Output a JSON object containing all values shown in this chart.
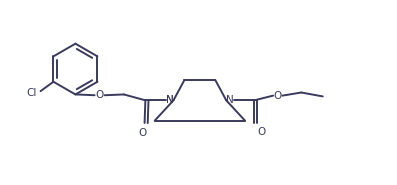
{
  "bg_color": "#ffffff",
  "line_color": "#3a3a5c",
  "line_width": 1.4,
  "figsize": [
    3.97,
    1.85
  ],
  "dpi": 100,
  "xlim": [
    0,
    10
  ],
  "ylim": [
    0,
    4.7
  ]
}
